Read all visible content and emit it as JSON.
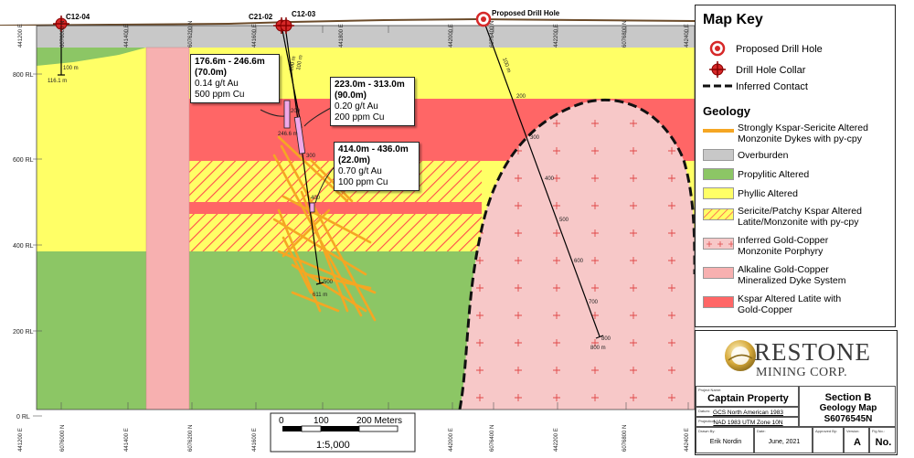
{
  "section": {
    "eastings": [
      "441200 E",
      "441400 E",
      "441600 E",
      "441800 E",
      "442000 E",
      "442200 E",
      "442400 E"
    ],
    "northings": [
      "6076000 N",
      "6076200 N",
      "6076400 N",
      "6076600 N",
      "6076800 N"
    ],
    "rl_labels": [
      "800 RL",
      "600 RL",
      "400 RL",
      "200 RL",
      "0 RL"
    ],
    "drill_holes": [
      {
        "name": "C12-04",
        "depth_labels": [
          "100 m",
          "116.1 m"
        ]
      },
      {
        "name": "C21-02",
        "depth_labels": [
          "100 m",
          "246.6 m"
        ]
      },
      {
        "name": "C12-03",
        "depth_labels": [
          "100 m",
          "200",
          "300",
          "400",
          "500",
          "611 m"
        ]
      },
      {
        "name": "Proposed Drill Hole",
        "depth_labels": [
          "100 m",
          "200",
          "300",
          "400",
          "500",
          "600",
          "700",
          "800",
          "800 m"
        ]
      }
    ],
    "intercepts": [
      {
        "interval": "176.6m - 246.6m",
        "length": "(70.0m)",
        "au": "0.14 g/t Au",
        "cu": "500 ppm Cu"
      },
      {
        "interval": "223.0m - 313.0m",
        "length": "(90.0m)",
        "au": "0.20 g/t Au",
        "cu": "200 ppm Cu"
      },
      {
        "interval": "414.0m - 436.0m",
        "length": "(22.0m)",
        "au": "0.70 g/t Au",
        "cu": "100 ppm Cu"
      }
    ],
    "scale_bar": {
      "ticks": [
        "0",
        "100",
        "200 Meters"
      ],
      "ratio": "1:5,000"
    }
  },
  "legend": {
    "title": "Map Key",
    "symbols": [
      {
        "icon": "proposed-drill-hole-icon",
        "label": "Proposed Drill Hole"
      },
      {
        "icon": "drill-hole-collar-icon",
        "label": "Drill Hole Collar"
      },
      {
        "icon": "inferred-contact-icon",
        "label": "Inferred Contact"
      }
    ],
    "geology_title": "Geology",
    "units": [
      {
        "label1": "Strongly Kspar-Sericite Altered",
        "label2": "Monzonite Dykes with py-cpy",
        "color": "#f5a623"
      },
      {
        "label1": "Overburden",
        "label2": "",
        "color": "#c8c8c8"
      },
      {
        "label1": "Propylitic Altered",
        "label2": "",
        "color": "#8cc665"
      },
      {
        "label1": "Phyllic Altered",
        "label2": "",
        "color": "#ffff66"
      },
      {
        "label1": "Sericite/Patchy Kspar Altered",
        "label2": "Latite/Monzonite with py-cpy",
        "color": "#ffff66"
      },
      {
        "label1": "Inferred Gold-Copper",
        "label2": "Monzonite Porphyry",
        "color": "#f7c8c8"
      },
      {
        "label1": "Alkaline Gold-Copper",
        "label2": "Mineralized Dyke System",
        "color": "#f7b0b0"
      },
      {
        "label1": "Kspar Altered Latite with",
        "label2": "Gold-Copper",
        "color": "#ff6666"
      }
    ]
  },
  "title_block": {
    "logo_line1": "RESTONE",
    "logo_line2": "MINING CORP.",
    "project_name_caption": "Project Name:",
    "project_name": "Captain Property",
    "datum_caption": "Datum:",
    "datum": "GCS North American 1983",
    "projection_caption": "Projection:",
    "projection": "NAD 1983 UTM Zone 10N",
    "section_title": "Section B",
    "map_title": "Geology Map",
    "section_id": "S6076545N",
    "drawn_by_caption": "Drawn By:",
    "drawn_by": "Erik Nordin",
    "date_caption": "Date:",
    "date": "June, 2021",
    "approved_caption": "Approved By:",
    "approved_by": "",
    "version_caption": "Version:",
    "version": "A",
    "fig_caption": "Fig No.:",
    "fig_no": "No."
  }
}
